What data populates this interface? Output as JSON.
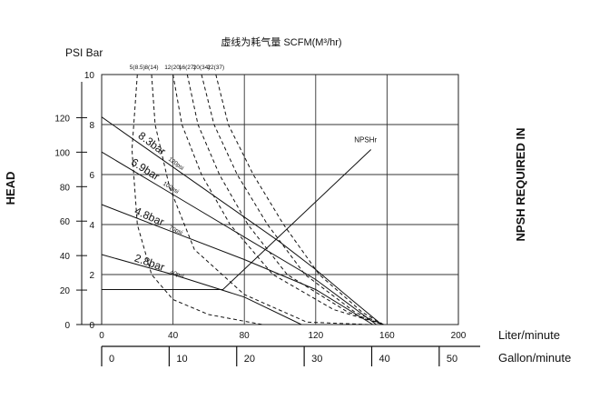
{
  "chart_data": {
    "type": "line",
    "title": "虚线为耗气量  SCFM(M³/hr)",
    "ylabel": "HEAD",
    "y_units": "PSI Bar",
    "y2label": "NPSH REQUIRED IN",
    "xlabel_primary": "Liter/minute",
    "xlabel_secondary": "Gallon/minute",
    "xlim": [
      0,
      200
    ],
    "x_ticks": [
      "0",
      "40",
      "80",
      "120",
      "160",
      "200"
    ],
    "x_ticks_values": [
      0,
      40,
      80,
      120,
      160,
      200
    ],
    "gallon_ticks": [
      "0",
      "10",
      "20",
      "30",
      "40",
      "50"
    ],
    "gallon_ticks_values": [
      0,
      10,
      20,
      30,
      40,
      50
    ],
    "ylim_bar": [
      0,
      10
    ],
    "bar_ticks": [
      "0",
      "2",
      "4",
      "6",
      "8",
      "10"
    ],
    "bar_ticks_values": [
      0,
      2,
      4,
      6,
      8,
      10
    ],
    "psi_ticks": [
      "0",
      "20",
      "40",
      "60",
      "80",
      "100",
      "120"
    ],
    "psi_ticks_values": [
      0,
      20,
      40,
      60,
      80,
      100,
      120
    ],
    "air_labels": [
      "5(8.5)",
      "8(14)",
      "12(20)",
      "16(27)",
      "20(34)",
      "22(37)"
    ],
    "air_label_x": [
      20,
      28,
      40,
      48,
      56,
      64
    ],
    "grid": true,
    "series": [
      {
        "name": "8.3bar",
        "unit": "120psi",
        "style": "solid",
        "points": [
          [
            0,
            8.3
          ],
          [
            20,
            7.3
          ],
          [
            40,
            6.3
          ],
          [
            60,
            5.3
          ],
          [
            80,
            4.3
          ],
          [
            100,
            3.3
          ],
          [
            120,
            2.2
          ],
          [
            140,
            1.0
          ],
          [
            157,
            0
          ]
        ]
      },
      {
        "name": "6.9bar",
        "unit": "100psi",
        "style": "solid",
        "points": [
          [
            0,
            6.9
          ],
          [
            40,
            5.2
          ],
          [
            80,
            3.5
          ],
          [
            120,
            1.8
          ],
          [
            154,
            0
          ]
        ]
      },
      {
        "name": "4.8bar",
        "unit": "70psi",
        "style": "solid",
        "points": [
          [
            0,
            4.8
          ],
          [
            40,
            3.7
          ],
          [
            80,
            2.6
          ],
          [
            120,
            1.4
          ],
          [
            152,
            0
          ]
        ]
      },
      {
        "name": "2.8bar",
        "unit": "40psi",
        "style": "solid",
        "points": [
          [
            0,
            2.8
          ],
          [
            40,
            2.0
          ],
          [
            80,
            1.1
          ],
          [
            112,
            0
          ]
        ]
      },
      {
        "style": "dashed",
        "points": [
          [
            20,
            10
          ],
          [
            17,
            7
          ],
          [
            20,
            4
          ],
          [
            28,
            2
          ],
          [
            40,
            1
          ],
          [
            60,
            0.4
          ],
          [
            90,
            0
          ]
        ]
      },
      {
        "style": "dashed",
        "points": [
          [
            28,
            10
          ],
          [
            30,
            8
          ],
          [
            38,
            5.5
          ],
          [
            52,
            3
          ],
          [
            80,
            1.2
          ],
          [
            115,
            0.1
          ],
          [
            150,
            0
          ]
        ]
      },
      {
        "style": "dashed",
        "points": [
          [
            40,
            10
          ],
          [
            45,
            8
          ],
          [
            56,
            6
          ],
          [
            72,
            4
          ],
          [
            96,
            2
          ],
          [
            130,
            0.6
          ],
          [
            158,
            0
          ]
        ]
      },
      {
        "style": "dashed",
        "points": [
          [
            48,
            10
          ],
          [
            54,
            8
          ],
          [
            66,
            6
          ],
          [
            82,
            4
          ],
          [
            104,
            2
          ],
          [
            138,
            0.5
          ],
          [
            158,
            0
          ]
        ]
      },
      {
        "style": "dashed",
        "points": [
          [
            56,
            10
          ],
          [
            63,
            8
          ],
          [
            76,
            6
          ],
          [
            93,
            4
          ],
          [
            114,
            2
          ],
          [
            142,
            0.5
          ],
          [
            158,
            0
          ]
        ]
      },
      {
        "style": "dashed",
        "points": [
          [
            64,
            10
          ],
          [
            71,
            8
          ],
          [
            85,
            6
          ],
          [
            102,
            4
          ],
          [
            122,
            2
          ],
          [
            146,
            0.5
          ],
          [
            158,
            0
          ]
        ]
      },
      {
        "name": "NPSHr",
        "style": "solid",
        "points": [
          [
            0,
            1.4
          ],
          [
            68,
            1.4
          ],
          [
            151,
            7.0
          ]
        ]
      }
    ]
  }
}
